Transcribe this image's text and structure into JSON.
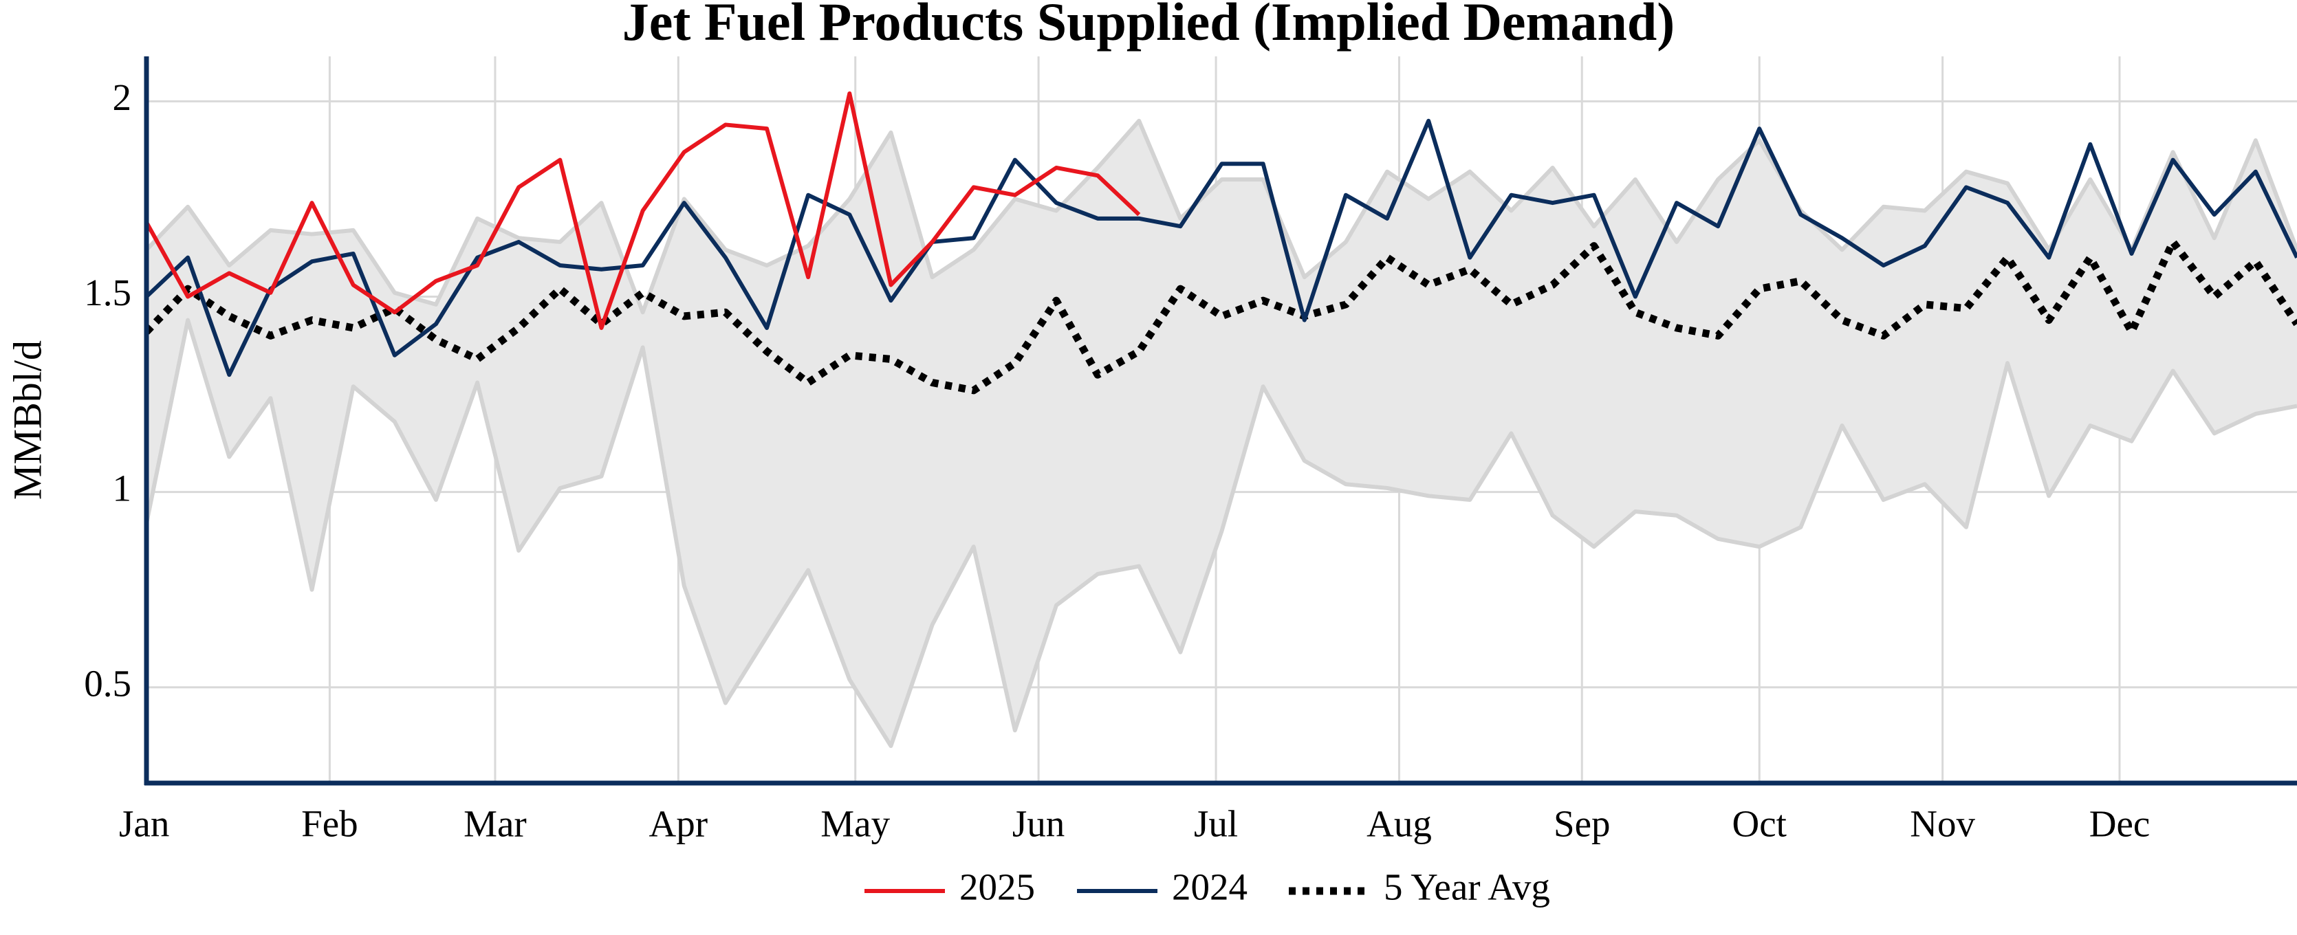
{
  "chart_data": {
    "type": "line",
    "title": "Jet Fuel Products Supplied (Implied Demand)",
    "y_label": "MMBbl/d",
    "x": [
      0,
      1,
      2,
      3,
      4,
      5,
      6,
      7,
      8,
      9,
      10,
      11,
      12,
      13,
      14,
      15,
      16,
      17,
      18,
      19,
      20,
      21,
      22,
      23,
      24,
      25,
      26,
      27,
      28,
      29,
      30,
      31,
      32,
      33,
      34,
      35,
      36,
      37,
      38,
      39,
      40,
      41,
      42,
      43,
      44,
      45,
      46,
      47,
      48,
      49,
      50,
      51,
      52
    ],
    "xlim": [
      0,
      52
    ],
    "xticks": [
      {
        "value": 0,
        "label": "Jan"
      },
      {
        "value": 4.43,
        "label": "Feb"
      },
      {
        "value": 8.43,
        "label": "Mar"
      },
      {
        "value": 12.86,
        "label": "Apr"
      },
      {
        "value": 17.14,
        "label": "May"
      },
      {
        "value": 21.57,
        "label": "Jun"
      },
      {
        "value": 25.86,
        "label": "Jul"
      },
      {
        "value": 30.29,
        "label": "Aug"
      },
      {
        "value": 34.71,
        "label": "Sep"
      },
      {
        "value": 39,
        "label": "Oct"
      },
      {
        "value": 43.43,
        "label": "Nov"
      },
      {
        "value": 47.71,
        "label": "Dec"
      }
    ],
    "ylim": [
      0.255,
      2.115
    ],
    "yticks": [
      0.5,
      1,
      1.5,
      2
    ],
    "grid": true,
    "band": {
      "color": "#e8e8e8",
      "edge_color": "#d3d3d3",
      "upper": [
        1.62,
        1.73,
        1.58,
        1.67,
        1.66,
        1.67,
        1.51,
        1.48,
        1.7,
        1.65,
        1.64,
        1.74,
        1.46,
        1.75,
        1.62,
        1.58,
        1.63,
        1.75,
        1.92,
        1.55,
        1.62,
        1.75,
        1.72,
        1.83,
        1.95,
        1.7,
        1.8,
        1.8,
        1.55,
        1.64,
        1.82,
        1.75,
        1.82,
        1.72,
        1.83,
        1.68,
        1.8,
        1.64,
        1.8,
        1.9,
        1.72,
        1.62,
        1.73,
        1.72,
        1.82,
        1.79,
        1.62,
        1.8,
        1.62,
        1.87,
        1.65,
        1.9,
        1.62
      ],
      "lower": [
        0.92,
        1.44,
        1.09,
        1.24,
        0.75,
        1.27,
        1.18,
        0.98,
        1.28,
        0.85,
        1.01,
        1.04,
        1.37,
        0.76,
        0.46,
        0.63,
        0.8,
        0.52,
        0.35,
        0.66,
        0.86,
        0.39,
        0.71,
        0.79,
        0.81,
        0.59,
        0.9,
        1.27,
        1.08,
        1.02,
        1.01,
        0.99,
        0.98,
        1.15,
        0.94,
        0.86,
        0.95,
        0.94,
        0.88,
        0.86,
        0.91,
        1.17,
        0.98,
        1.02,
        0.91,
        1.33,
        0.99,
        1.17,
        1.13,
        1.31,
        1.15,
        1.2,
        1.22
      ]
    },
    "series": [
      {
        "name": "2025",
        "color": "#e8161e",
        "style": "solid",
        "values": [
          1.69,
          1.5,
          1.56,
          1.51,
          1.74,
          1.53,
          1.46,
          1.54,
          1.58,
          1.78,
          1.85,
          1.42,
          1.72,
          1.87,
          1.94,
          1.93,
          1.55,
          2.02,
          1.53,
          1.64,
          1.78,
          1.76,
          1.83,
          1.81,
          1.71,
          null,
          null,
          null,
          null,
          null,
          null,
          null,
          null,
          null,
          null,
          null,
          null,
          null,
          null,
          null,
          null,
          null,
          null,
          null,
          null,
          null,
          null,
          null,
          null,
          null,
          null,
          null,
          null
        ]
      },
      {
        "name": "2024",
        "color": "#0b2d5c",
        "style": "solid",
        "values": [
          1.5,
          1.6,
          1.3,
          1.52,
          1.59,
          1.61,
          1.35,
          1.43,
          1.6,
          1.64,
          1.58,
          1.57,
          1.58,
          1.74,
          1.6,
          1.42,
          1.76,
          1.71,
          1.49,
          1.64,
          1.65,
          1.85,
          1.74,
          1.7,
          1.7,
          1.68,
          1.84,
          1.84,
          1.44,
          1.76,
          1.7,
          1.95,
          1.6,
          1.76,
          1.74,
          1.76,
          1.5,
          1.74,
          1.68,
          1.93,
          1.71,
          1.65,
          1.58,
          1.63,
          1.78,
          1.74,
          1.6,
          1.89,
          1.61,
          1.85,
          1.71,
          1.82,
          1.6
        ]
      },
      {
        "name": "5 Year Avg",
        "color": "#000000",
        "style": "dotted",
        "values": [
          1.41,
          1.52,
          1.45,
          1.4,
          1.44,
          1.42,
          1.47,
          1.39,
          1.34,
          1.42,
          1.52,
          1.43,
          1.51,
          1.45,
          1.46,
          1.36,
          1.28,
          1.35,
          1.34,
          1.28,
          1.26,
          1.33,
          1.49,
          1.3,
          1.36,
          1.52,
          1.45,
          1.49,
          1.45,
          1.48,
          1.6,
          1.53,
          1.57,
          1.48,
          1.53,
          1.63,
          1.46,
          1.42,
          1.4,
          1.52,
          1.54,
          1.44,
          1.4,
          1.48,
          1.47,
          1.6,
          1.44,
          1.6,
          1.41,
          1.64,
          1.5,
          1.59,
          1.43
        ]
      }
    ],
    "axis_color": "#0b2d5c"
  }
}
